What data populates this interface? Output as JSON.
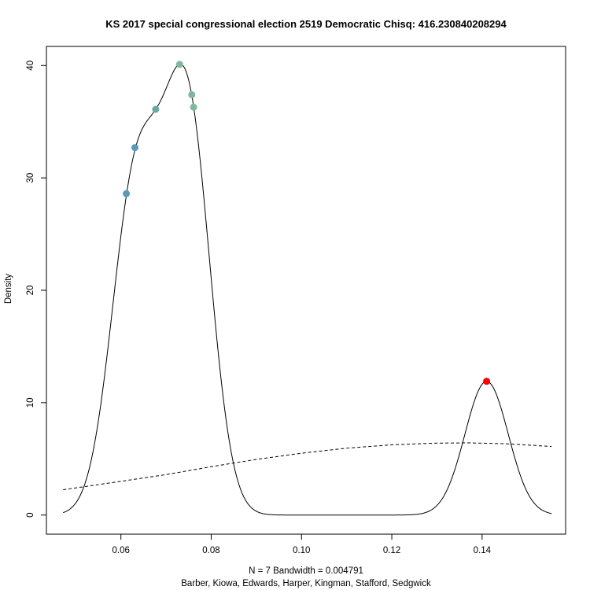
{
  "chart_data": {
    "type": "line",
    "title": "KS 2017 special congressional election 2519 Democratic Chisq: 416.230840208294",
    "xlabel_line1": "N = 7   Bandwidth = 0.004791",
    "xlabel_line2": "Barber, Kiowa, Edwards, Harper, Kingman, Stafford, Sedgwick",
    "ylabel": "Density",
    "xlim": [
      0.0435,
      0.1585
    ],
    "ylim": [
      -1.7,
      41.7
    ],
    "x_ticks": [
      0.06,
      0.08,
      0.1,
      0.12,
      0.14
    ],
    "x_tick_labels": [
      "0.06",
      "0.08",
      "0.10",
      "0.12",
      "0.14"
    ],
    "y_ticks": [
      0,
      10,
      20,
      30,
      40
    ],
    "y_tick_labels": [
      "0",
      "10",
      "20",
      "30",
      "40"
    ],
    "bandwidth": 0.004791,
    "density_range": [
      0.0472,
      0.1554
    ],
    "points": [
      {
        "x": 0.0612,
        "y": 28.6,
        "color": "#5b9ab8"
      },
      {
        "x": 0.0631,
        "y": 32.7,
        "color": "#5b9ab8"
      },
      {
        "x": 0.0677,
        "y": 36.1,
        "color": "#6aa8a6"
      },
      {
        "x": 0.073,
        "y": 40.1,
        "color": "#7fb99a"
      },
      {
        "x": 0.0757,
        "y": 37.4,
        "color": "#7fb99a"
      },
      {
        "x": 0.0761,
        "y": 36.3,
        "color": "#7fb99a"
      },
      {
        "x": 0.141,
        "y": 11.9,
        "color": "#ff0000"
      }
    ],
    "reference_curve": {
      "style": "dashed",
      "x": [
        0.0472,
        0.06,
        0.07,
        0.08,
        0.09,
        0.1,
        0.11,
        0.12,
        0.13,
        0.137,
        0.145,
        0.1554
      ],
      "y": [
        2.25,
        3.0,
        3.6,
        4.3,
        4.95,
        5.5,
        5.95,
        6.25,
        6.4,
        6.42,
        6.35,
        6.1
      ]
    },
    "grid": false,
    "legend": "none"
  }
}
